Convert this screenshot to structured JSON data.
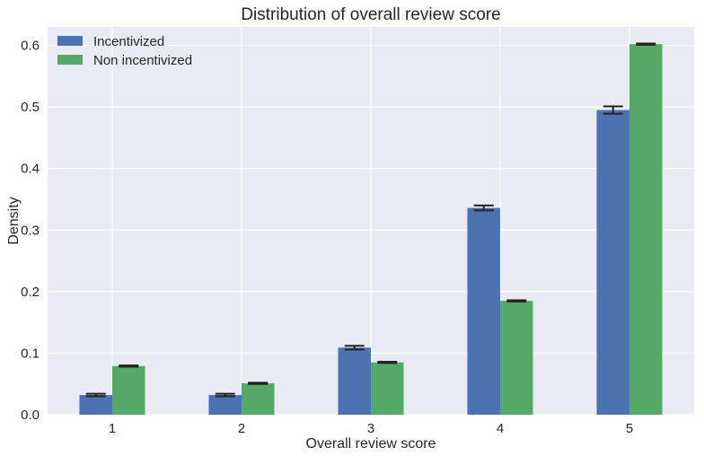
{
  "chart_data": {
    "type": "bar",
    "title": "Distribution of overall review score",
    "xlabel": "Overall review score",
    "ylabel": "Density",
    "categories": [
      "1",
      "2",
      "3",
      "4",
      "5"
    ],
    "ylim": [
      0,
      0.63
    ],
    "yticks": [
      0.0,
      0.1,
      0.2,
      0.3,
      0.4,
      0.5,
      0.6
    ],
    "ytick_labels": [
      "0.0",
      "0.1",
      "0.2",
      "0.3",
      "0.4",
      "0.5",
      "0.6"
    ],
    "grid": true,
    "legend_position": "top-left",
    "series": [
      {
        "name": "Incentivized",
        "color": "#4c72b0",
        "values": [
          0.032,
          0.032,
          0.109,
          0.336,
          0.495
        ],
        "errors": [
          0.002,
          0.002,
          0.003,
          0.004,
          0.006
        ]
      },
      {
        "name": "Non incentivized",
        "color": "#55a868",
        "values": [
          0.079,
          0.051,
          0.085,
          0.185,
          0.602
        ],
        "errors": [
          0.001,
          0.001,
          0.001,
          0.001,
          0.001
        ]
      }
    ],
    "background_color": "#eaeaf2",
    "grid_color": "#ffffff",
    "errorbar_color": "#222222"
  }
}
